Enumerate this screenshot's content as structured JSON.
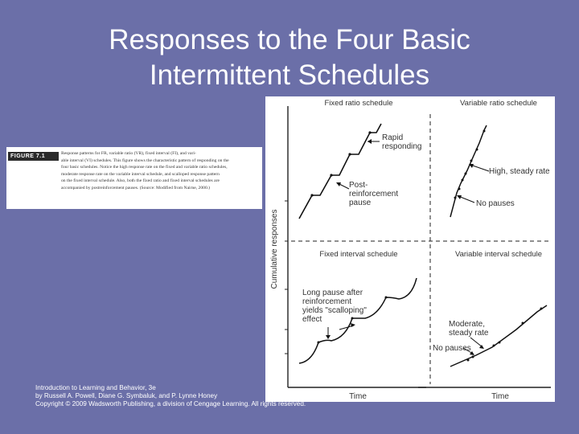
{
  "slide": {
    "title_line1": "Responses to the Four Basic",
    "title_line2": "Intermittent Schedules",
    "footer_line1": "Introduction to Learning and Behavior, 3e",
    "footer_line2": "by Russell A. Powell, Diane G. Symbaluk, and P. Lynne Honey",
    "footer_line3": "Copyright © 2009 Wadsworth Publishing, a division of Cengage Learning. All rights reserved."
  },
  "caption": {
    "figure_label": "FIGURE 7.1",
    "lines": [
      "Response patterns for FR, variable ratio (VR), fixed interval (FI), and vari-",
      "able interval (VI) schedules. This figure shows the characteristic pattern of responding on the",
      "four basic schedules. Notice the high response rate on the fixed and variable ratio schedules,",
      "moderate response rate on the variable interval schedule, and scalloped response pattern",
      "on the fixed interval schedule. Also, both the fixed ratio and fixed interval schedules are",
      "accompanied by postreinforcement pauses. (Source: Modified from Nairne, 2000.)"
    ]
  },
  "figure": {
    "y_axis_label": "Cumulative responses",
    "x_axis_label_left": "Time",
    "x_axis_label_right": "Time",
    "panels": {
      "fixed_ratio": {
        "title": "Fixed ratio schedule",
        "annotation_rapid": [
          "Rapid",
          "responding"
        ],
        "annotation_pause": [
          "Post-",
          "reinforcement",
          "pause"
        ]
      },
      "variable_ratio": {
        "title": "Variable ratio schedule",
        "annotation_high": "High, steady rate",
        "annotation_nopause": "No pauses"
      },
      "fixed_interval": {
        "title": "Fixed interval schedule",
        "annotation_long": [
          "Long pause after",
          "reinforcement",
          "yields \"scalloping\"",
          "effect"
        ]
      },
      "variable_interval": {
        "title": "Variable interval schedule",
        "annotation_moderate": [
          "Moderate,",
          "steady rate"
        ],
        "annotation_nopause": "No pauses"
      }
    }
  }
}
